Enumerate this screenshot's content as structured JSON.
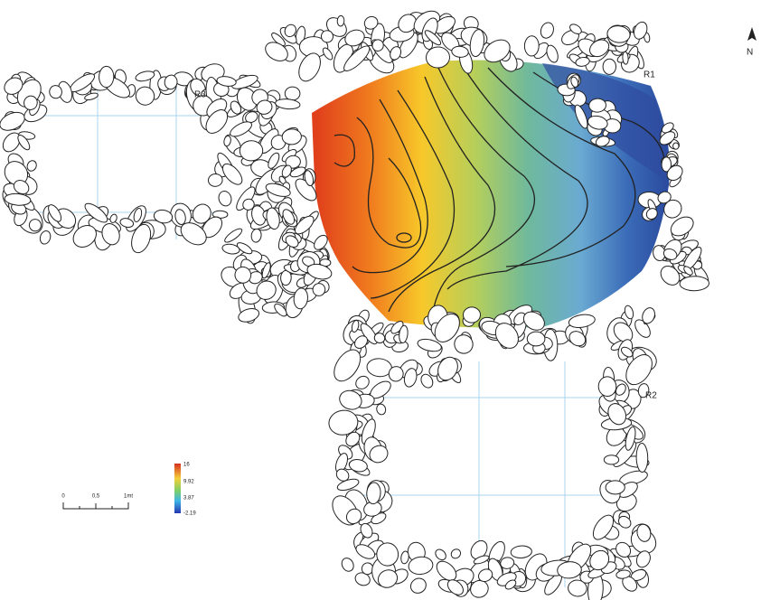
{
  "labels": {
    "r1": "R1",
    "r2": "R2",
    "r3": "R3",
    "north": "N"
  },
  "legend": {
    "labels": [
      "16",
      "9.92",
      "3.87",
      "-2.19"
    ]
  },
  "scale_bar": {
    "labels": [
      "0",
      "0,5",
      "1mt"
    ]
  }
}
